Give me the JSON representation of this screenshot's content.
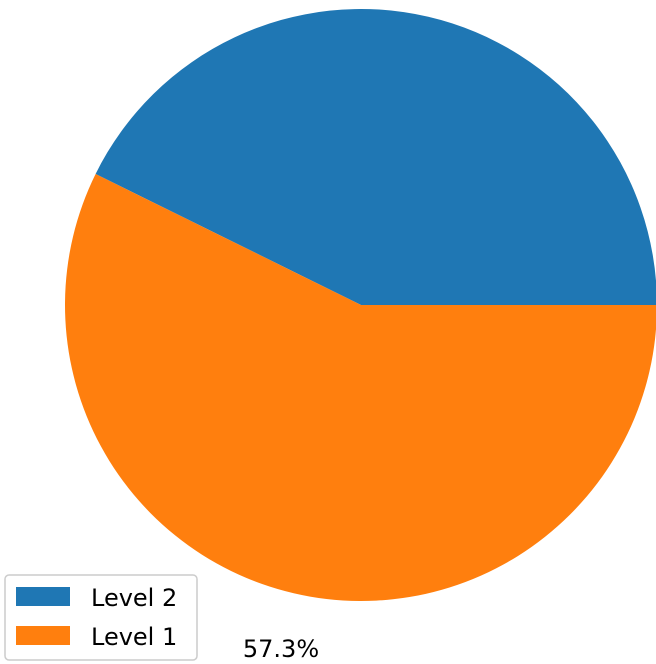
{
  "chart_data": {
    "type": "pie",
    "slices": [
      {
        "label": "Level 2",
        "value": 42.7,
        "color": "#1f77b4"
      },
      {
        "label": "Level 1",
        "value": 57.3,
        "color": "#ff7f0e"
      }
    ],
    "start_angle_deg": 0,
    "direction": "counterclockwise",
    "data_labels": [
      {
        "text": "57.3%",
        "slice": "Level 1"
      }
    ],
    "legend": {
      "placement": "lower-left",
      "entries": [
        "Level 2",
        "Level 1"
      ]
    }
  }
}
